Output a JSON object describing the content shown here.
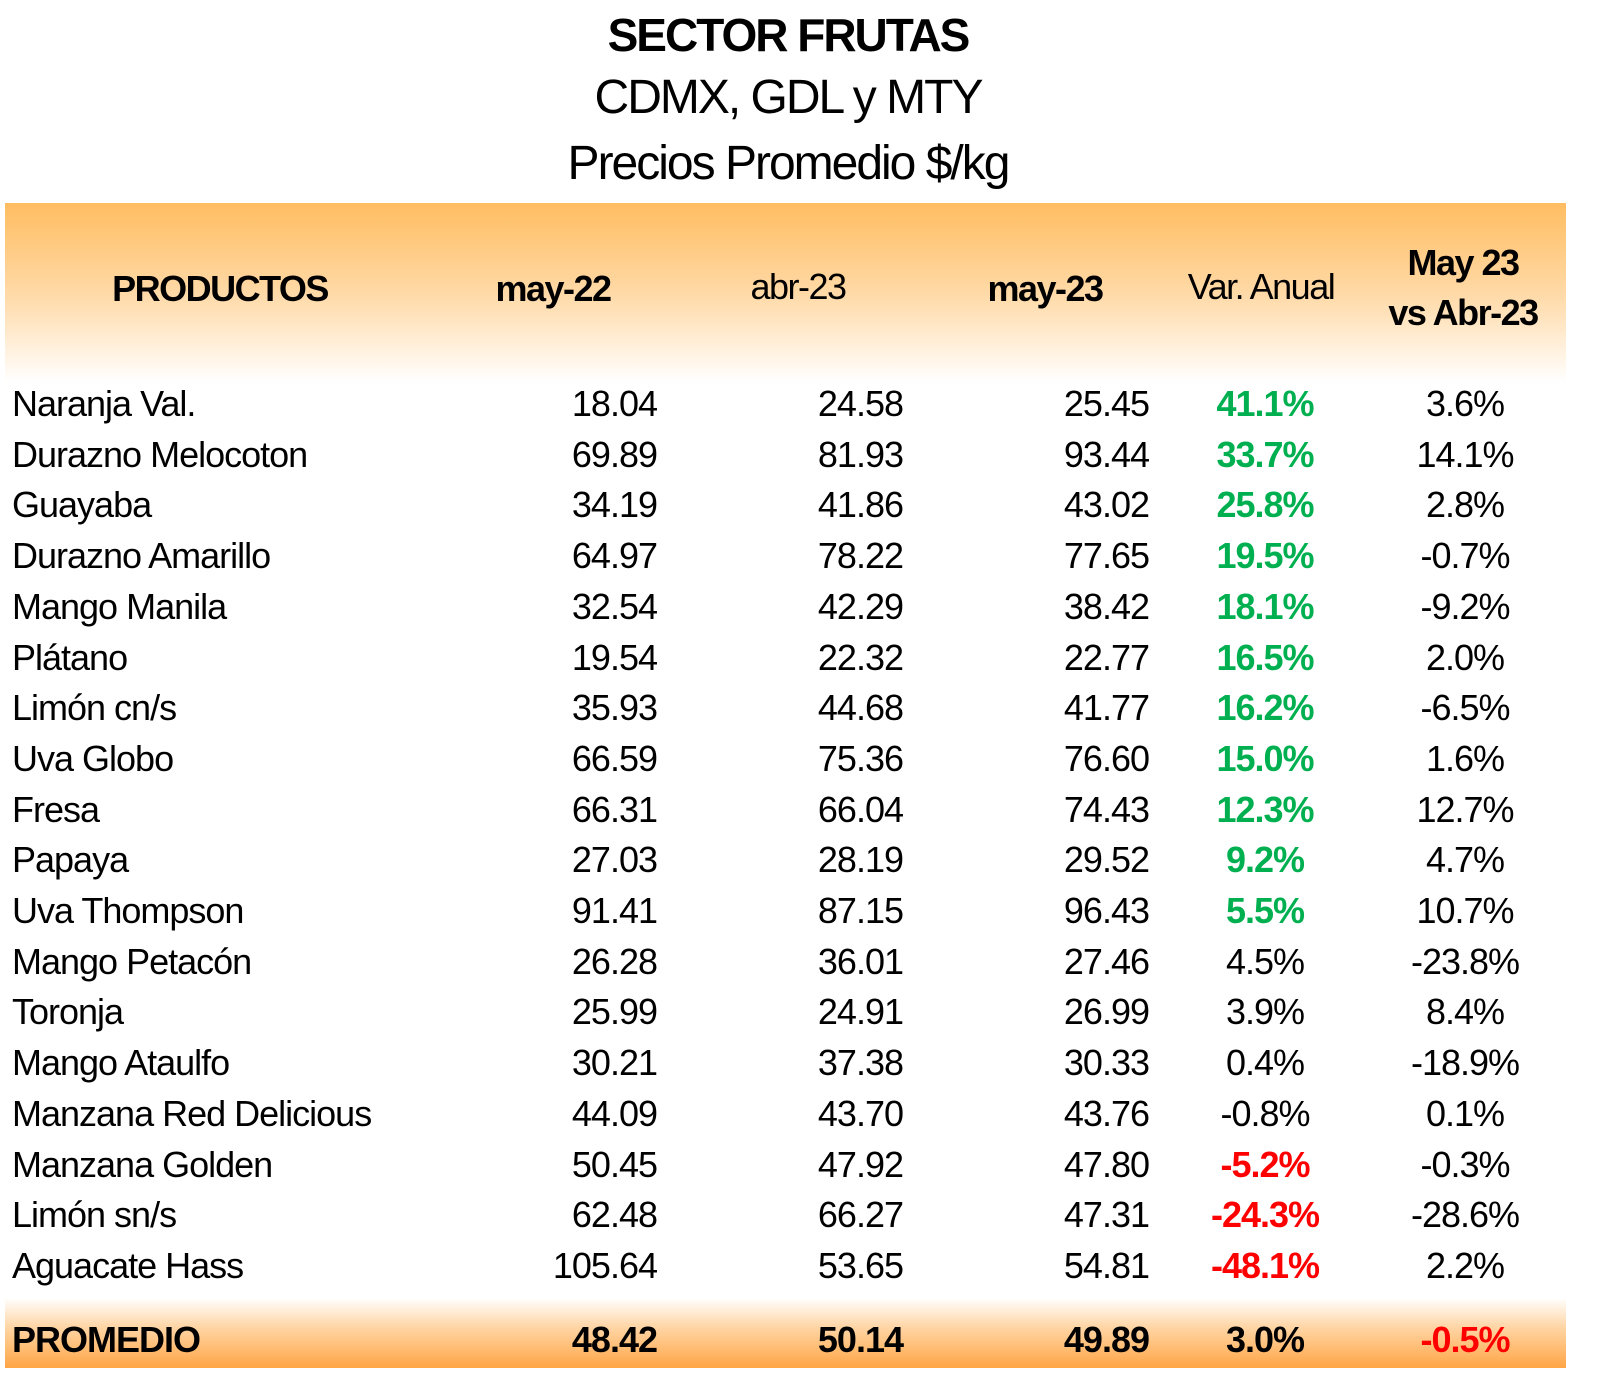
{
  "title": {
    "line1": "SECTOR FRUTAS",
    "line2": "CDMX, GDL y MTY",
    "line3": "Precios Promedio $/kg"
  },
  "headers": {
    "productos": "PRODUCTOS",
    "may22": "may-22",
    "abr23": "abr-23",
    "may23": "may-23",
    "var_anual": "Var. Anual",
    "vs_line1": "May 23",
    "vs_line2": "vs Abr-23"
  },
  "colors": {
    "green": "#00B050",
    "red": "#FF0000",
    "header_orange": "#FFBD61",
    "footer_orange": "#FFA545"
  },
  "rows": [
    {
      "product": "Naranja Val.",
      "may22": "18.04",
      "abr23": "24.58",
      "may23": "25.45",
      "var": "41.1%",
      "var_style": "green",
      "vs": "3.6%",
      "vs_style": ""
    },
    {
      "product": "Durazno Melocoton",
      "may22": "69.89",
      "abr23": "81.93",
      "may23": "93.44",
      "var": "33.7%",
      "var_style": "green",
      "vs": "14.1%",
      "vs_style": ""
    },
    {
      "product": "Guayaba",
      "may22": "34.19",
      "abr23": "41.86",
      "may23": "43.02",
      "var": "25.8%",
      "var_style": "green",
      "vs": "2.8%",
      "vs_style": ""
    },
    {
      "product": "Durazno Amarillo",
      "may22": "64.97",
      "abr23": "78.22",
      "may23": "77.65",
      "var": "19.5%",
      "var_style": "green",
      "vs": "-0.7%",
      "vs_style": ""
    },
    {
      "product": "Mango Manila",
      "may22": "32.54",
      "abr23": "42.29",
      "may23": "38.42",
      "var": "18.1%",
      "var_style": "green",
      "vs": "-9.2%",
      "vs_style": ""
    },
    {
      "product": "Plátano",
      "may22": "19.54",
      "abr23": "22.32",
      "may23": "22.77",
      "var": "16.5%",
      "var_style": "green",
      "vs": "2.0%",
      "vs_style": ""
    },
    {
      "product": "Limón cn/s",
      "may22": "35.93",
      "abr23": "44.68",
      "may23": "41.77",
      "var": "16.2%",
      "var_style": "green",
      "vs": "-6.5%",
      "vs_style": ""
    },
    {
      "product": "Uva Globo",
      "may22": "66.59",
      "abr23": "75.36",
      "may23": "76.60",
      "var": "15.0%",
      "var_style": "green",
      "vs": "1.6%",
      "vs_style": ""
    },
    {
      "product": "Fresa",
      "may22": "66.31",
      "abr23": "66.04",
      "may23": "74.43",
      "var": "12.3%",
      "var_style": "green",
      "vs": "12.7%",
      "vs_style": ""
    },
    {
      "product": "Papaya",
      "may22": "27.03",
      "abr23": "28.19",
      "may23": "29.52",
      "var": "9.2%",
      "var_style": "green",
      "vs": "4.7%",
      "vs_style": ""
    },
    {
      "product": "Uva Thompson",
      "may22": "91.41",
      "abr23": "87.15",
      "may23": "96.43",
      "var": "5.5%",
      "var_style": "green",
      "vs": "10.7%",
      "vs_style": ""
    },
    {
      "product": "Mango Petacón",
      "may22": "26.28",
      "abr23": "36.01",
      "may23": "27.46",
      "var": "4.5%",
      "var_style": "",
      "vs": "-23.8%",
      "vs_style": ""
    },
    {
      "product": "Toronja",
      "may22": "25.99",
      "abr23": "24.91",
      "may23": "26.99",
      "var": "3.9%",
      "var_style": "",
      "vs": "8.4%",
      "vs_style": ""
    },
    {
      "product": "Mango Ataulfo",
      "may22": "30.21",
      "abr23": "37.38",
      "may23": "30.33",
      "var": "0.4%",
      "var_style": "",
      "vs": "-18.9%",
      "vs_style": ""
    },
    {
      "product": "Manzana Red Delicious",
      "may22": "44.09",
      "abr23": "43.70",
      "may23": "43.76",
      "var": "-0.8%",
      "var_style": "",
      "vs": "0.1%",
      "vs_style": ""
    },
    {
      "product": "Manzana Golden",
      "may22": "50.45",
      "abr23": "47.92",
      "may23": "47.80",
      "var": "-5.2%",
      "var_style": "red",
      "vs": "-0.3%",
      "vs_style": ""
    },
    {
      "product": "Limón sn/s",
      "may22": "62.48",
      "abr23": "66.27",
      "may23": "47.31",
      "var": "-24.3%",
      "var_style": "red",
      "vs": "-28.6%",
      "vs_style": ""
    },
    {
      "product": "Aguacate Hass",
      "may22": "105.64",
      "abr23": "53.65",
      "may23": "54.81",
      "var": "-48.1%",
      "var_style": "red",
      "vs": "2.2%",
      "vs_style": ""
    }
  ],
  "footer": {
    "product": "PROMEDIO",
    "may22": "48.42",
    "abr23": "50.14",
    "may23": "49.89",
    "var": "3.0%",
    "vs": "-0.5%"
  }
}
